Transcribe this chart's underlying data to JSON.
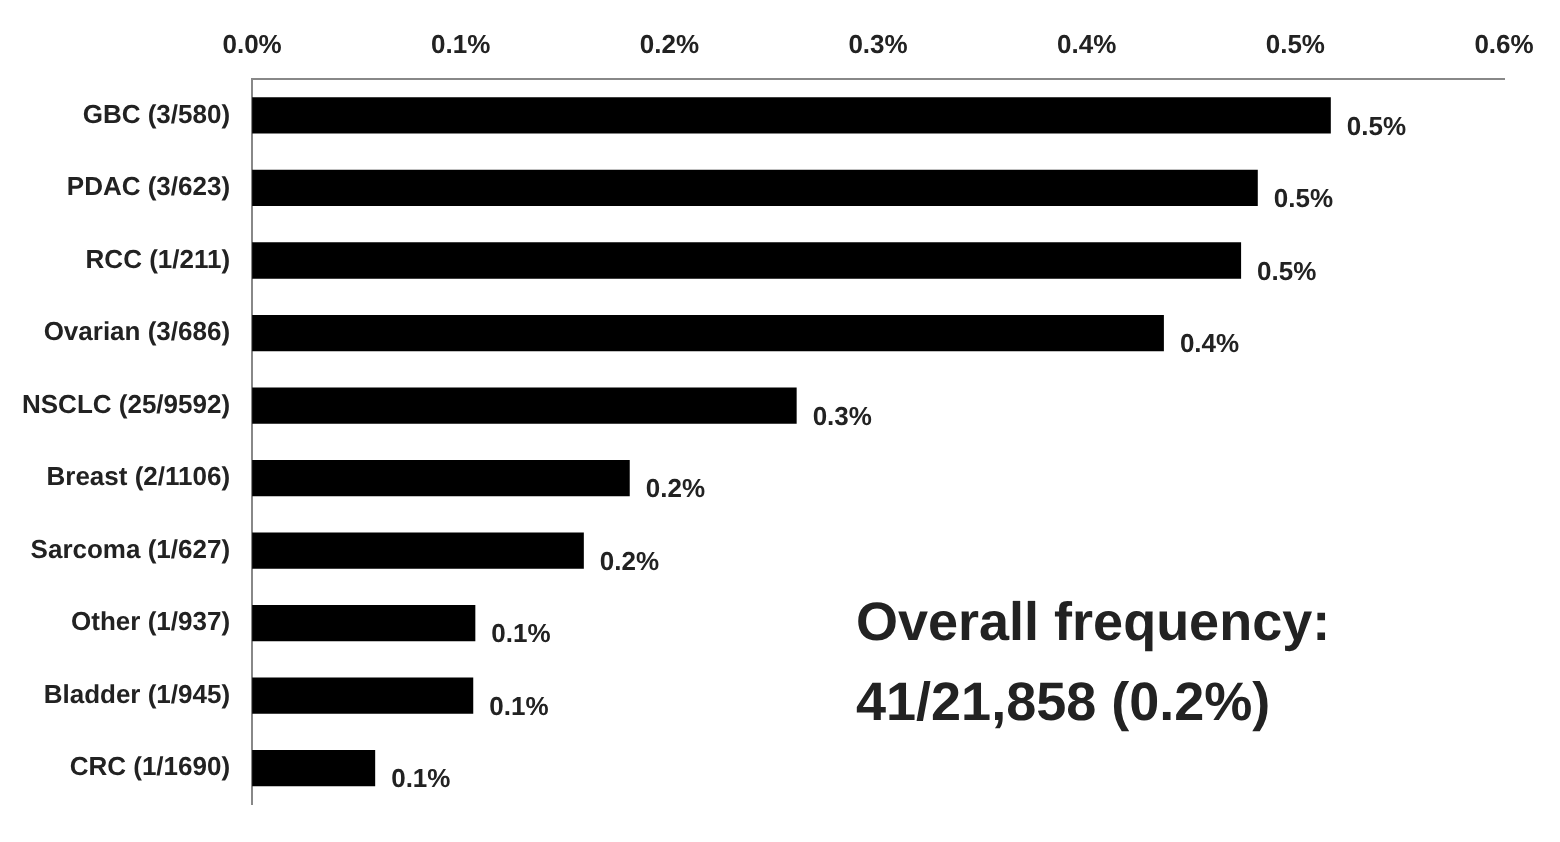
{
  "chart_data": {
    "type": "bar",
    "orientation": "horizontal",
    "categories": [
      "GBC (3/580)",
      "PDAC (3/623)",
      "RCC (1/211)",
      "Ovarian (3/686)",
      "NSCLC (25/9592)",
      "Breast (2/1106)",
      "Sarcoma (1/627)",
      "Other (1/937)",
      "Bladder (1/945)",
      "CRC (1/1690)"
    ],
    "values": [
      0.517,
      0.482,
      0.474,
      0.437,
      0.261,
      0.181,
      0.159,
      0.107,
      0.106,
      0.059
    ],
    "value_labels": [
      "0.5%",
      "0.5%",
      "0.5%",
      "0.4%",
      "0.3%",
      "0.2%",
      "0.2%",
      "0.1%",
      "0.1%",
      "0.1%"
    ],
    "color": "#000000",
    "xlim": [
      0,
      0.6
    ],
    "xticks": [
      {
        "value": 0,
        "label": "0.0%"
      },
      {
        "value": 0.1,
        "label": "0.1%"
      },
      {
        "value": 0.2,
        "label": "0.2%"
      },
      {
        "value": 0.3,
        "label": "0.3%"
      },
      {
        "value": 0.4,
        "label": "0.4%"
      },
      {
        "value": 0.5,
        "label": "0.5%"
      },
      {
        "value": 0.6,
        "label": "0.6%"
      }
    ],
    "grid": false,
    "annotations": [
      "Overall frequency:",
      "41/21,858 (0.2%)"
    ]
  }
}
